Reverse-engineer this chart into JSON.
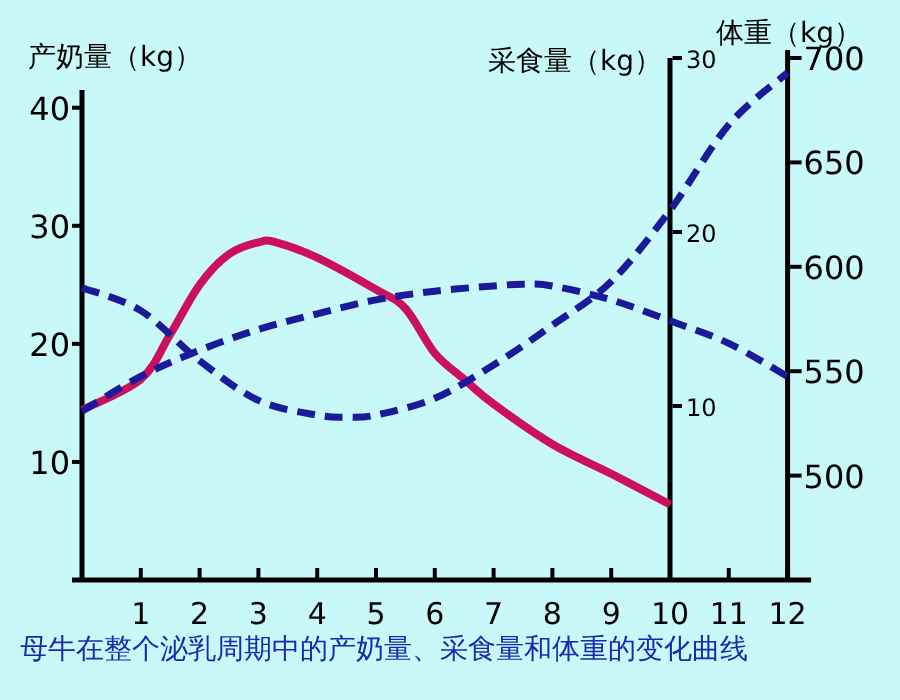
{
  "chart_data": {
    "type": "line",
    "xlabel": null,
    "ylabel": "产奶量（kg）",
    "y2label": "采食量（kg）",
    "y3label": "体重（kg）",
    "annotations": [
      "母牛在整个泌乳周期中的产奶量、采食量和体重的变化曲线"
    ],
    "xlim": [
      0,
      12.4
    ],
    "xticks": [
      1,
      2,
      3,
      4,
      5,
      6,
      7,
      8,
      9,
      10,
      11,
      12
    ],
    "ylim": [
      0,
      41.5
    ],
    "yticks": [
      10,
      20,
      30,
      40
    ],
    "y2lim": [
      0,
      30
    ],
    "y2ticks": [
      10,
      20,
      30
    ],
    "y3lim": [
      450,
      700
    ],
    "y3ticks": [
      500,
      550,
      600,
      650,
      700
    ],
    "marker": "none",
    "series": [
      {
        "color": "#cc1060",
        "line_style": "solid",
        "x": [
          0,
          1,
          1.5,
          2,
          2.5,
          3,
          3.3,
          4,
          5,
          5.5,
          6,
          6.5,
          7,
          8,
          9,
          10
        ],
        "values": [
          14.4,
          17,
          20.8,
          25,
          27.6,
          28.6,
          28.6,
          27.3,
          24.6,
          23,
          19.2,
          17,
          14.9,
          11.5,
          9,
          6.4
        ]
      },
      {
        "color": "#1a1a9a",
        "line_style": "dashed",
        "axis": "y2",
        "x": [
          0,
          1,
          2,
          3,
          4,
          5,
          6,
          7,
          7.5,
          8,
          9,
          10,
          11,
          12
        ],
        "values": [
          9.7,
          11.7,
          13.2,
          14.4,
          15.3,
          16.1,
          16.6,
          16.9,
          17,
          16.9,
          16.1,
          14.9,
          13.6,
          11.7
        ]
      },
      {
        "color": "#1a1a9a",
        "line_style": "dashed",
        "axis": "y3",
        "x": [
          0,
          1,
          2,
          3,
          4,
          4.5,
          5,
          6,
          7,
          8,
          9,
          10,
          11,
          12
        ],
        "values": [
          590,
          579,
          555,
          536,
          529,
          528,
          529,
          537,
          553,
          572,
          593,
          627,
          668,
          693
        ]
      }
    ]
  }
}
